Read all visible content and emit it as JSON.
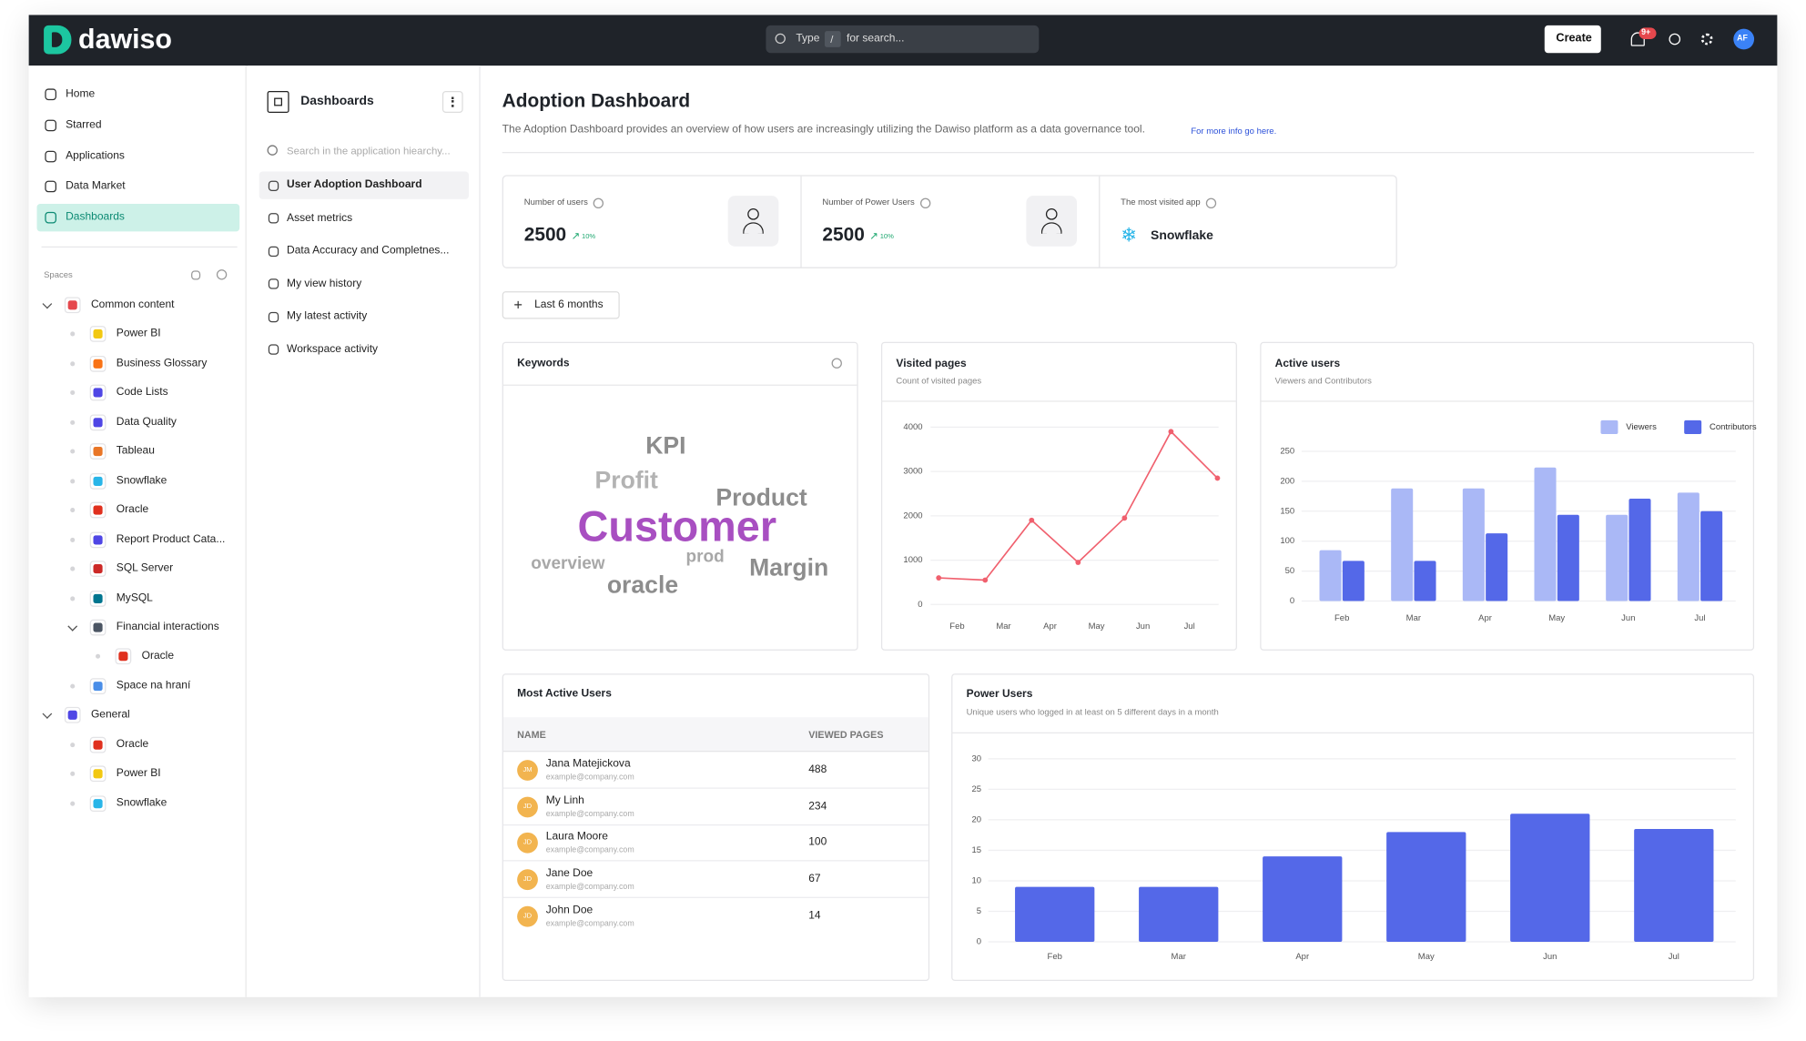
{
  "header": {
    "logo": "dawiso",
    "search_type": "Type",
    "search_key": "/",
    "search_placeholder": "for search...",
    "create": "Create",
    "badge": "9+",
    "avatar": "AF"
  },
  "sidebar": {
    "nav": [
      {
        "label": "Home"
      },
      {
        "label": "Starred"
      },
      {
        "label": "Applications"
      },
      {
        "label": "Data Market"
      },
      {
        "label": "Dashboards",
        "active": true
      }
    ],
    "spaces": "Spaces",
    "tree": [
      {
        "label": "Common content",
        "icon_color": "#e5484d",
        "children": [
          {
            "label": "Power BI",
            "icon_color": "#f2c811"
          },
          {
            "label": "Business Glossary",
            "icon_color": "#f97316"
          },
          {
            "label": "Code Lists",
            "icon_color": "#4f46e5"
          },
          {
            "label": "Data Quality",
            "icon_color": "#4f46e5"
          },
          {
            "label": "Tableau",
            "icon_color": "#e97627"
          },
          {
            "label": "Snowflake",
            "icon_color": "#29b5e8"
          },
          {
            "label": "Oracle",
            "icon_color": "#e0301e"
          },
          {
            "label": "Report Product Cata...",
            "icon_color": "#4f46e5"
          },
          {
            "label": "SQL Server",
            "icon_color": "#cc2927"
          },
          {
            "label": "MySQL",
            "icon_color": "#00758f"
          },
          {
            "label": "Financial interactions",
            "icon_color": "#4b5563",
            "children": [
              {
                "label": "Oracle",
                "icon_color": "#e0301e"
              }
            ]
          },
          {
            "label": "Space na hraní",
            "icon_color": "#4a8ee8"
          }
        ]
      },
      {
        "label": "General",
        "icon_color": "#4f46e5",
        "children": [
          {
            "label": "Oracle",
            "icon_color": "#e0301e"
          },
          {
            "label": "Power BI",
            "icon_color": "#f2c811"
          },
          {
            "label": "Snowflake",
            "icon_color": "#29b5e8"
          }
        ]
      }
    ]
  },
  "panel": {
    "title": "Dashboards",
    "search_placeholder": "Search in the application hiearchy...",
    "items": [
      {
        "label": "User Adoption Dashboard",
        "active": true
      },
      {
        "label": "Asset metrics"
      },
      {
        "label": "Data Accuracy and Completnes..."
      },
      {
        "label": "My view history"
      },
      {
        "label": "My latest activity"
      },
      {
        "label": "Workspace activity"
      }
    ]
  },
  "main": {
    "title": "Adoption Dashboard",
    "description": "The Adoption Dashboard provides an overview of how users are increasingly utilizing the Dawiso platform as a data governance tool.",
    "link": "For more info go here.",
    "kpis": [
      {
        "label": "Number of users",
        "value": 2500,
        "change": "10%"
      },
      {
        "label": "Number of Power Users",
        "value": 2500,
        "change": "10%"
      },
      {
        "label": "The most visited app",
        "value": "Snowflake"
      }
    ],
    "filter": "Last 6 months",
    "keywords": {
      "title": "Keywords",
      "words": [
        "KPI",
        "Profit",
        "Product",
        "Customer",
        "prod",
        "overview",
        "Margin",
        "oracle"
      ]
    },
    "visited_pages": {
      "type": "line",
      "title": "Visited pages",
      "subtitle": "Count of visited pages",
      "categories": [
        "Feb",
        "Mar",
        "Apr",
        "May",
        "Jun",
        "Jul",
        null
      ],
      "values": [
        600,
        550,
        1900,
        950,
        1950,
        3900,
        2850
      ],
      "color": "#f0606e",
      "ylim": [
        0,
        4000
      ],
      "yticks": [
        0,
        1000,
        2000,
        3000,
        4000
      ],
      "grid": true
    },
    "active_users": {
      "type": "bar",
      "title": "Active users",
      "subtitle": "Viewers and Contributors",
      "categories": [
        "Feb",
        "Mar",
        "Apr",
        "May",
        "Jun",
        "Jul"
      ],
      "series": [
        {
          "name": "Viewers",
          "color": "#aab8f6",
          "values": [
            85,
            188,
            188,
            223,
            144,
            181
          ]
        },
        {
          "name": "Contributors",
          "color": "#5468e8",
          "values": [
            67,
            67,
            113,
            144,
            171,
            150
          ]
        }
      ],
      "ylim": [
        0,
        250
      ],
      "yticks": [
        0,
        50,
        100,
        150,
        200,
        250
      ],
      "legend": "top-right",
      "grid": true
    },
    "most_active": {
      "title": "Most Active Users",
      "columns": [
        "NAME",
        "VIEWED PAGES"
      ],
      "rows": [
        {
          "initials": "JM",
          "name": "Jana Matejickova",
          "email": "example@company.com",
          "views": 488
        },
        {
          "initials": "JD",
          "name": "My Linh",
          "email": "example@company.com",
          "views": 234
        },
        {
          "initials": "JD",
          "name": "Laura Moore",
          "email": "example@company.com",
          "views": 100
        },
        {
          "initials": "JD",
          "name": "Jane Doe",
          "email": "example@company.com",
          "views": 67
        },
        {
          "initials": "JD",
          "name": "John Doe",
          "email": "example@company.com",
          "views": 14
        }
      ]
    },
    "power_users": {
      "type": "bar",
      "title": "Power Users",
      "subtitle": "Unique users who logged in at least on 5 different days in a month",
      "categories": [
        "Feb",
        "Mar",
        "Apr",
        "May",
        "Jun",
        "Jul"
      ],
      "values": [
        9,
        9,
        14,
        18,
        21,
        18.5
      ],
      "color": "#5468e8",
      "ylim": [
        0,
        30
      ],
      "yticks": [
        0,
        5,
        10,
        15,
        20,
        25,
        30
      ],
      "grid": true
    }
  }
}
